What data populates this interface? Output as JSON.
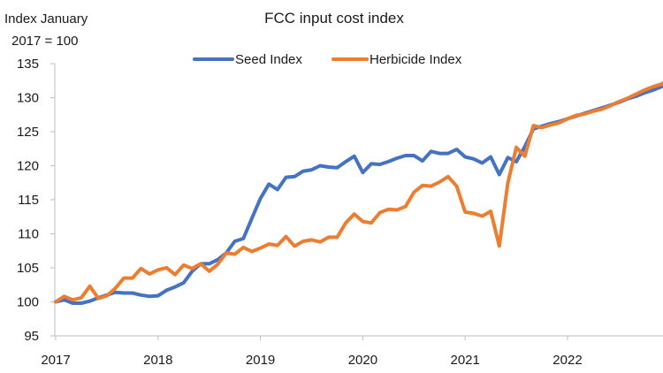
{
  "chart_data": {
    "type": "line",
    "title": "FCC input cost index",
    "ylabel_line1": "Index  January",
    "ylabel_line2": "2017 = 100",
    "xlabel": "",
    "ylim": [
      95,
      135
    ],
    "yticks": [
      95,
      100,
      105,
      110,
      115,
      120,
      125,
      130,
      135
    ],
    "xlim": [
      2017.0,
      2022.95
    ],
    "xticks": [
      {
        "value": 2017,
        "label": "2017"
      },
      {
        "value": 2018,
        "label": "2018"
      },
      {
        "value": 2019,
        "label": "2019"
      },
      {
        "value": 2020,
        "label": "2020"
      },
      {
        "value": 2021,
        "label": "2021"
      },
      {
        "value": 2022,
        "label": "2022"
      }
    ],
    "grid": false,
    "legend_position": "top-center",
    "series": [
      {
        "name": "Seed Index",
        "color": "#4472c4",
        "x": [
          2017.0,
          2017.083,
          2017.167,
          2017.25,
          2017.333,
          2017.417,
          2017.5,
          2017.583,
          2017.667,
          2017.75,
          2017.833,
          2017.917,
          2018.0,
          2018.083,
          2018.167,
          2018.25,
          2018.333,
          2018.417,
          2018.5,
          2018.583,
          2018.667,
          2018.75,
          2018.833,
          2018.917,
          2019.0,
          2019.083,
          2019.167,
          2019.25,
          2019.333,
          2019.417,
          2019.5,
          2019.583,
          2019.667,
          2019.75,
          2019.833,
          2019.917,
          2020.0,
          2020.083,
          2020.167,
          2020.25,
          2020.333,
          2020.417,
          2020.5,
          2020.583,
          2020.667,
          2020.75,
          2020.833,
          2020.917,
          2021.0,
          2021.083,
          2021.167,
          2021.25,
          2021.333,
          2021.417,
          2021.5,
          2021.583,
          2021.667,
          2021.75,
          2021.833,
          2021.917,
          2022.0,
          2022.083,
          2022.167,
          2022.25,
          2022.333,
          2022.417,
          2022.5,
          2022.583,
          2022.667,
          2022.75,
          2022.833,
          2022.917
        ],
        "values": [
          100.0,
          100.3,
          99.8,
          99.8,
          100.1,
          100.6,
          101.0,
          101.4,
          101.3,
          101.3,
          101.0,
          100.8,
          100.9,
          101.7,
          102.2,
          102.8,
          104.5,
          105.6,
          105.6,
          106.2,
          107.2,
          108.9,
          109.3,
          112.3,
          115.2,
          117.3,
          116.5,
          118.3,
          118.4,
          119.2,
          119.4,
          120.0,
          119.8,
          119.7,
          120.6,
          121.4,
          119.0,
          120.3,
          120.2,
          120.6,
          121.1,
          121.5,
          121.5,
          120.7,
          122.1,
          121.8,
          121.8,
          122.4,
          121.3,
          121.0,
          120.4,
          121.3,
          118.7,
          121.2,
          120.6,
          122.8,
          125.4,
          125.8,
          126.2,
          126.5,
          126.9,
          127.3,
          127.7,
          128.1,
          128.5,
          128.9,
          129.3,
          129.8,
          130.2,
          130.7,
          131.1,
          131.6
        ]
      },
      {
        "name": "Herbicide Index",
        "color": "#ed7d31",
        "x": [
          2017.0,
          2017.083,
          2017.167,
          2017.25,
          2017.333,
          2017.417,
          2017.5,
          2017.583,
          2017.667,
          2017.75,
          2017.833,
          2017.917,
          2018.0,
          2018.083,
          2018.167,
          2018.25,
          2018.333,
          2018.417,
          2018.5,
          2018.583,
          2018.667,
          2018.75,
          2018.833,
          2018.917,
          2019.0,
          2019.083,
          2019.167,
          2019.25,
          2019.333,
          2019.417,
          2019.5,
          2019.583,
          2019.667,
          2019.75,
          2019.833,
          2019.917,
          2020.0,
          2020.083,
          2020.167,
          2020.25,
          2020.333,
          2020.417,
          2020.5,
          2020.583,
          2020.667,
          2020.75,
          2020.833,
          2020.917,
          2021.0,
          2021.083,
          2021.167,
          2021.25,
          2021.333,
          2021.417,
          2021.5,
          2021.583,
          2021.667,
          2021.75,
          2021.833,
          2021.917,
          2022.0,
          2022.083,
          2022.167,
          2022.25,
          2022.333,
          2022.417,
          2022.5,
          2022.583,
          2022.667,
          2022.75,
          2022.833,
          2022.917,
          2022.95
        ],
        "values": [
          100.0,
          100.8,
          100.3,
          100.6,
          102.3,
          100.5,
          100.9,
          102.0,
          103.5,
          103.5,
          104.9,
          104.1,
          104.7,
          105.0,
          104.0,
          105.4,
          104.9,
          105.6,
          104.5,
          105.5,
          107.2,
          107.0,
          108.0,
          107.4,
          107.9,
          108.5,
          108.3,
          109.6,
          108.2,
          108.9,
          109.1,
          108.8,
          109.5,
          109.5,
          111.6,
          112.9,
          111.8,
          111.6,
          113.1,
          113.6,
          113.5,
          114.0,
          116.1,
          117.1,
          117.0,
          117.6,
          118.4,
          117.0,
          113.2,
          113.0,
          112.6,
          113.3,
          108.2,
          117.5,
          122.7,
          121.4,
          125.9,
          125.6,
          126.0,
          126.3,
          126.9,
          127.4,
          127.6,
          128.0,
          128.3,
          128.8,
          129.4,
          129.9,
          130.5,
          131.1,
          131.6,
          132.0,
          132.3
        ]
      }
    ]
  }
}
